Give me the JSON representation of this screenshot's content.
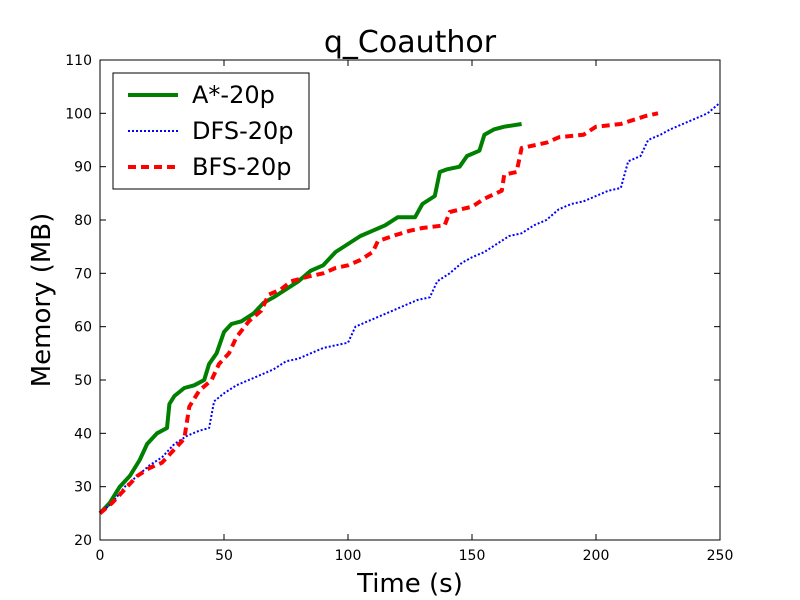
{
  "chart_data": {
    "type": "line",
    "title": "q_Coauthor",
    "xlabel": "Time (s)",
    "ylabel": "Memory (MB)",
    "xlim": [
      0,
      250
    ],
    "ylim": [
      20,
      110
    ],
    "xticks": [
      0,
      50,
      100,
      150,
      200,
      250
    ],
    "yticks": [
      20,
      30,
      40,
      50,
      60,
      70,
      80,
      90,
      100,
      110
    ],
    "grid": false,
    "legend_position": "top-left",
    "series": [
      {
        "name": "A*-20p",
        "color": "#008000",
        "style": "solid",
        "points": [
          [
            0,
            25
          ],
          [
            4,
            27
          ],
          [
            8,
            30
          ],
          [
            12,
            32
          ],
          [
            16,
            35
          ],
          [
            19,
            38
          ],
          [
            23,
            40
          ],
          [
            27,
            41
          ],
          [
            28,
            45.5
          ],
          [
            30,
            47
          ],
          [
            34,
            48.5
          ],
          [
            38,
            49
          ],
          [
            42,
            50
          ],
          [
            44,
            53
          ],
          [
            47,
            55
          ],
          [
            50,
            59
          ],
          [
            53,
            60.5
          ],
          [
            57,
            61
          ],
          [
            62,
            62.5
          ],
          [
            66,
            64.5
          ],
          [
            70,
            65.5
          ],
          [
            75,
            67
          ],
          [
            80,
            68.5
          ],
          [
            85,
            70.5
          ],
          [
            90,
            71.5
          ],
          [
            95,
            74
          ],
          [
            100,
            75.5
          ],
          [
            105,
            77
          ],
          [
            110,
            78
          ],
          [
            115,
            79
          ],
          [
            120,
            80.5
          ],
          [
            127,
            80.5
          ],
          [
            130,
            83
          ],
          [
            135,
            84.5
          ],
          [
            137,
            89
          ],
          [
            140,
            89.5
          ],
          [
            145,
            90
          ],
          [
            148,
            92
          ],
          [
            153,
            93
          ],
          [
            155,
            96
          ],
          [
            159,
            97
          ],
          [
            163,
            97.5
          ],
          [
            170,
            98
          ]
        ]
      },
      {
        "name": "DFS-20p",
        "color": "#0000ff",
        "style": "dotted",
        "points": [
          [
            0,
            25
          ],
          [
            5,
            27
          ],
          [
            10,
            30
          ],
          [
            15,
            32
          ],
          [
            20,
            34
          ],
          [
            25,
            35.5
          ],
          [
            30,
            38
          ],
          [
            35,
            39.5
          ],
          [
            40,
            40.5
          ],
          [
            44,
            41
          ],
          [
            46,
            46
          ],
          [
            50,
            47.5
          ],
          [
            55,
            49
          ],
          [
            60,
            50
          ],
          [
            65,
            51
          ],
          [
            70,
            52
          ],
          [
            75,
            53.5
          ],
          [
            80,
            54
          ],
          [
            85,
            55
          ],
          [
            90,
            56
          ],
          [
            95,
            56.5
          ],
          [
            100,
            57
          ],
          [
            103,
            60
          ],
          [
            108,
            61
          ],
          [
            113,
            62
          ],
          [
            118,
            63
          ],
          [
            123,
            64
          ],
          [
            128,
            65
          ],
          [
            133,
            65.5
          ],
          [
            136,
            68.5
          ],
          [
            141,
            70
          ],
          [
            146,
            72
          ],
          [
            150,
            73
          ],
          [
            155,
            74
          ],
          [
            160,
            75.5
          ],
          [
            165,
            77
          ],
          [
            170,
            77.5
          ],
          [
            175,
            79
          ],
          [
            180,
            80
          ],
          [
            185,
            82
          ],
          [
            190,
            83
          ],
          [
            195,
            83.5
          ],
          [
            200,
            84.5
          ],
          [
            205,
            85.5
          ],
          [
            210,
            86
          ],
          [
            213,
            91
          ],
          [
            218,
            92
          ],
          [
            221,
            95
          ],
          [
            226,
            96
          ],
          [
            230,
            97
          ],
          [
            235,
            98
          ],
          [
            240,
            99
          ],
          [
            245,
            100
          ],
          [
            250,
            102
          ]
        ]
      },
      {
        "name": "BFS-20p",
        "color": "#ff0000",
        "style": "dashed",
        "points": [
          [
            0,
            25
          ],
          [
            5,
            27
          ],
          [
            10,
            29.5
          ],
          [
            15,
            32
          ],
          [
            20,
            33.5
          ],
          [
            25,
            34.5
          ],
          [
            30,
            37
          ],
          [
            34,
            39
          ],
          [
            36,
            45
          ],
          [
            40,
            48
          ],
          [
            45,
            50
          ],
          [
            48,
            53
          ],
          [
            52,
            55
          ],
          [
            55,
            58
          ],
          [
            60,
            61
          ],
          [
            65,
            63
          ],
          [
            68,
            66
          ],
          [
            73,
            67
          ],
          [
            77,
            68.5
          ],
          [
            85,
            69.5
          ],
          [
            90,
            70
          ],
          [
            95,
            71
          ],
          [
            100,
            71.5
          ],
          [
            105,
            72.5
          ],
          [
            110,
            74
          ],
          [
            112,
            76
          ],
          [
            118,
            77
          ],
          [
            125,
            78
          ],
          [
            130,
            78.5
          ],
          [
            139,
            79
          ],
          [
            141,
            81.5
          ],
          [
            150,
            82.5
          ],
          [
            155,
            84
          ],
          [
            162,
            85.5
          ],
          [
            163,
            88.5
          ],
          [
            168,
            89
          ],
          [
            170,
            93.5
          ],
          [
            180,
            94.5
          ],
          [
            185,
            95.5
          ],
          [
            195,
            96
          ],
          [
            200,
            97.5
          ],
          [
            210,
            98
          ],
          [
            220,
            99.5
          ],
          [
            225,
            100
          ]
        ]
      }
    ]
  }
}
